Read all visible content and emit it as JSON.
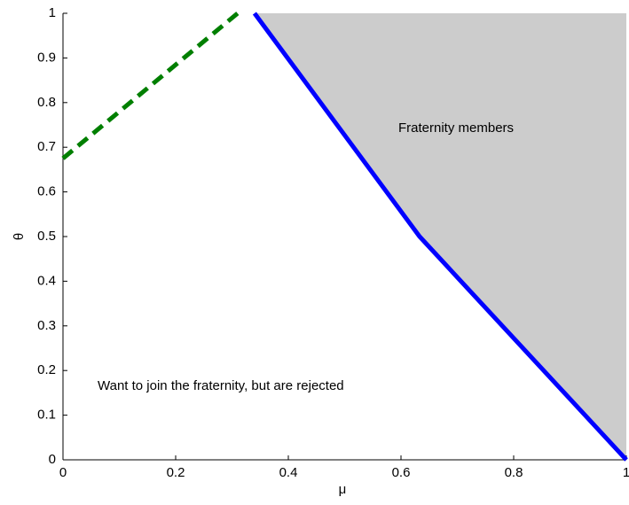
{
  "chart_data": {
    "type": "line",
    "xlabel": "μ",
    "ylabel": "θ",
    "xlim": [
      0,
      1
    ],
    "ylim": [
      0,
      1
    ],
    "xticks": [
      0,
      0.2,
      0.4,
      0.6,
      0.8,
      1
    ],
    "yticks": [
      0,
      0.1,
      0.2,
      0.3,
      0.4,
      0.5,
      0.6,
      0.7,
      0.8,
      0.9,
      1
    ],
    "shade": "#cccccc",
    "series": [
      {
        "color": "#0000ff",
        "style": "solid",
        "x": [
          0.34,
          0.633,
          1
        ],
        "values": [
          1,
          0.5,
          0
        ]
      },
      {
        "color": "#007f00",
        "style": "dashed",
        "x": [
          0,
          0.31
        ],
        "values": [
          0.675,
          1
        ]
      }
    ],
    "annotations": [
      "Fraternity members",
      "Want to join the fraternity, but are rejected"
    ]
  }
}
